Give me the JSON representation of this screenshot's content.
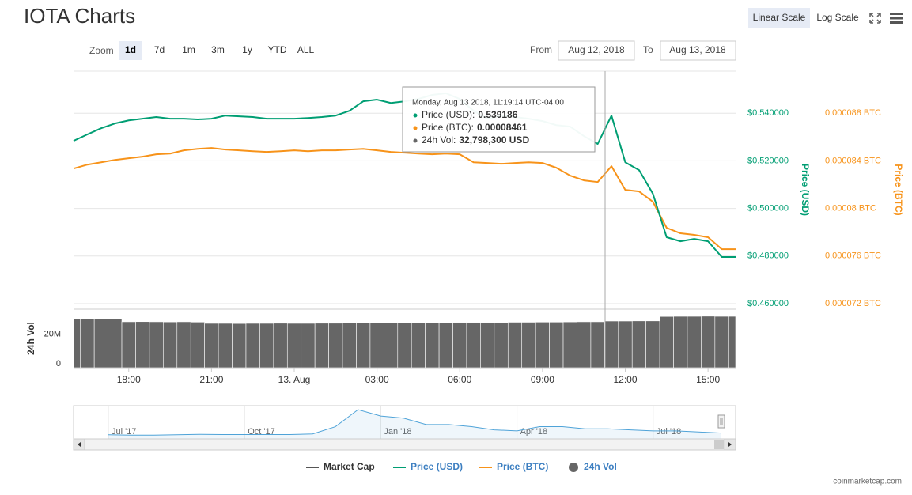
{
  "header": {
    "title": "IOTA Charts",
    "scale_buttons": [
      "Linear Scale",
      "Log Scale"
    ],
    "selected_scale": 0,
    "credit": "coinmarketcap.com"
  },
  "zoom": {
    "label": "Zoom",
    "buttons": [
      "1d",
      "7d",
      "1m",
      "3m",
      "1y",
      "YTD",
      "ALL"
    ],
    "selected": 0,
    "from_label": "From",
    "from": "Aug 12, 2018",
    "to_label": "To",
    "to": "Aug 13, 2018"
  },
  "tooltip": {
    "title": "Monday, Aug 13 2018, 11:19:14 UTC-04:00",
    "items": [
      {
        "label": "Price (USD):",
        "value": "0.539186"
      },
      {
        "label": "Price (BTC):",
        "value": "0.00008461"
      },
      {
        "label": "24h Vol:",
        "value": "32,798,300 USD"
      }
    ]
  },
  "chart_data": [
    {
      "type": "line",
      "ylabel": "Price (USD)",
      "y2label": "Price (BTC)",
      "x": [
        16,
        16.5,
        17,
        17.5,
        18,
        18.5,
        19,
        19.5,
        20,
        20.5,
        21,
        21.5,
        22,
        22.5,
        23,
        23.5,
        24,
        24.5,
        25,
        25.5,
        26,
        26.5,
        27,
        27.5,
        28,
        28.5,
        29,
        29.5,
        30,
        30.5,
        31,
        31.5,
        32,
        32.5,
        33,
        33.5,
        34,
        34.5,
        35,
        35.5,
        36,
        36.5,
        37,
        37.5,
        38,
        38.5,
        39,
        39.5,
        40
      ],
      "xlim": [
        16,
        40
      ],
      "xticks": [
        {
          "value": 18,
          "label": "18:00"
        },
        {
          "value": 21,
          "label": "21:00"
        },
        {
          "value": 24,
          "label": "13. Aug"
        },
        {
          "value": 27,
          "label": "03:00"
        },
        {
          "value": 30,
          "label": "06:00"
        },
        {
          "value": 33,
          "label": "09:00"
        },
        {
          "value": 36,
          "label": "12:00"
        },
        {
          "value": 39,
          "label": "15:00"
        }
      ],
      "ylim": [
        0.46,
        0.56
      ],
      "yticks": [
        {
          "value": 0.46,
          "label": "$0.460000"
        },
        {
          "value": 0.48,
          "label": "$0.480000"
        },
        {
          "value": 0.5,
          "label": "$0.500000"
        },
        {
          "value": 0.52,
          "label": "$0.520000"
        },
        {
          "value": 0.54,
          "label": "$0.540000"
        }
      ],
      "y2lim": [
        7.2e-05,
        9.2e-05
      ],
      "y2ticks": [
        {
          "value": 7.2e-05,
          "label": "0.000072 BTC"
        },
        {
          "value": 7.6e-05,
          "label": "0.000076 BTC"
        },
        {
          "value": 8e-05,
          "label": "0.00008 BTC"
        },
        {
          "value": 8.4e-05,
          "label": "0.000084 BTC"
        },
        {
          "value": 8.8e-05,
          "label": "0.000088 BTC"
        }
      ],
      "grid": true,
      "series": [
        {
          "name": "Price (USD)",
          "color": "#009e73",
          "values": [
            0.5284,
            0.5311,
            0.5337,
            0.5357,
            0.537,
            0.5377,
            0.5384,
            0.5377,
            0.5377,
            0.5374,
            0.5377,
            0.539,
            0.5387,
            0.5384,
            0.5377,
            0.5377,
            0.5377,
            0.538,
            0.5384,
            0.539,
            0.541,
            0.545,
            0.5457,
            0.5443,
            0.545,
            0.546,
            0.5477,
            0.5484,
            0.546,
            0.541,
            0.5377,
            0.539,
            0.5384,
            0.5377,
            0.5367,
            0.535,
            0.5344,
            0.5304,
            0.5271,
            0.539,
            0.5194,
            0.5161,
            0.5062,
            0.4879,
            0.4862,
            0.4872,
            0.4862,
            0.4796,
            0.4796
          ]
        },
        {
          "name": "Price (BTC)",
          "color": "#f7931a",
          "axis": "y2",
          "values": [
            8.335e-05,
            8.368e-05,
            8.388e-05,
            8.408e-05,
            8.422e-05,
            8.435e-05,
            8.455e-05,
            8.461e-05,
            8.488e-05,
            8.501e-05,
            8.508e-05,
            8.495e-05,
            8.488e-05,
            8.481e-05,
            8.475e-05,
            8.481e-05,
            8.488e-05,
            8.481e-05,
            8.488e-05,
            8.488e-05,
            8.495e-05,
            8.501e-05,
            8.488e-05,
            8.475e-05,
            8.468e-05,
            8.461e-05,
            8.455e-05,
            8.461e-05,
            8.455e-05,
            8.388e-05,
            8.382e-05,
            8.375e-05,
            8.382e-05,
            8.388e-05,
            8.382e-05,
            8.342e-05,
            8.276e-05,
            8.236e-05,
            8.222e-05,
            8.355e-05,
            8.156e-05,
            8.143e-05,
            8.056e-05,
            7.837e-05,
            7.791e-05,
            7.778e-05,
            7.758e-05,
            7.658e-05,
            7.658e-05
          ]
        }
      ]
    },
    {
      "type": "bar",
      "name": "24h Vol",
      "ylabel": "24h Vol",
      "color": "#666666",
      "ylim": [
        0,
        36000000
      ],
      "yticks": [
        0,
        {
          "value": 20000000,
          "label": "20M"
        }
      ],
      "values": [
        33300000,
        33200000,
        33300000,
        33100000,
        31200000,
        31300000,
        31200000,
        31100000,
        31200000,
        31000000,
        30100000,
        30100000,
        30000000,
        30100000,
        30100000,
        30200000,
        30100000,
        30100000,
        30200000,
        30200000,
        30300000,
        30300000,
        30400000,
        30400000,
        30500000,
        30500000,
        30600000,
        30600000,
        30700000,
        30700000,
        30800000,
        30800000,
        30900000,
        30900000,
        31000000,
        31000000,
        31100000,
        31200000,
        31200000,
        31700000,
        31700000,
        31800000,
        31800000,
        34800000,
        34900000,
        34900000,
        35000000,
        34900000,
        34900000
      ]
    },
    {
      "type": "area",
      "name": "Market Cap",
      "color": "#555555",
      "xticks": [
        {
          "value": 0,
          "label": "Jul '17"
        },
        {
          "value": 6,
          "label": "Oct '17"
        },
        {
          "value": 12,
          "label": "Jan '18"
        },
        {
          "value": 18,
          "label": "Apr '18"
        },
        {
          "value": 24,
          "label": "Jul '18"
        }
      ],
      "values": [
        1200000000,
        1000000000,
        1000000000,
        1200000000,
        1400000000,
        1300000000,
        1300000000,
        1300000000,
        1300000000,
        1600000000,
        5000000000,
        13000000000,
        10000000000,
        9000000000,
        6000000000,
        6000000000,
        5000000000,
        3500000000,
        3000000000,
        5000000000,
        5000000000,
        4000000000,
        4000000000,
        3500000000,
        3000000000,
        3000000000,
        2500000000,
        2000000000
      ]
    }
  ]
}
